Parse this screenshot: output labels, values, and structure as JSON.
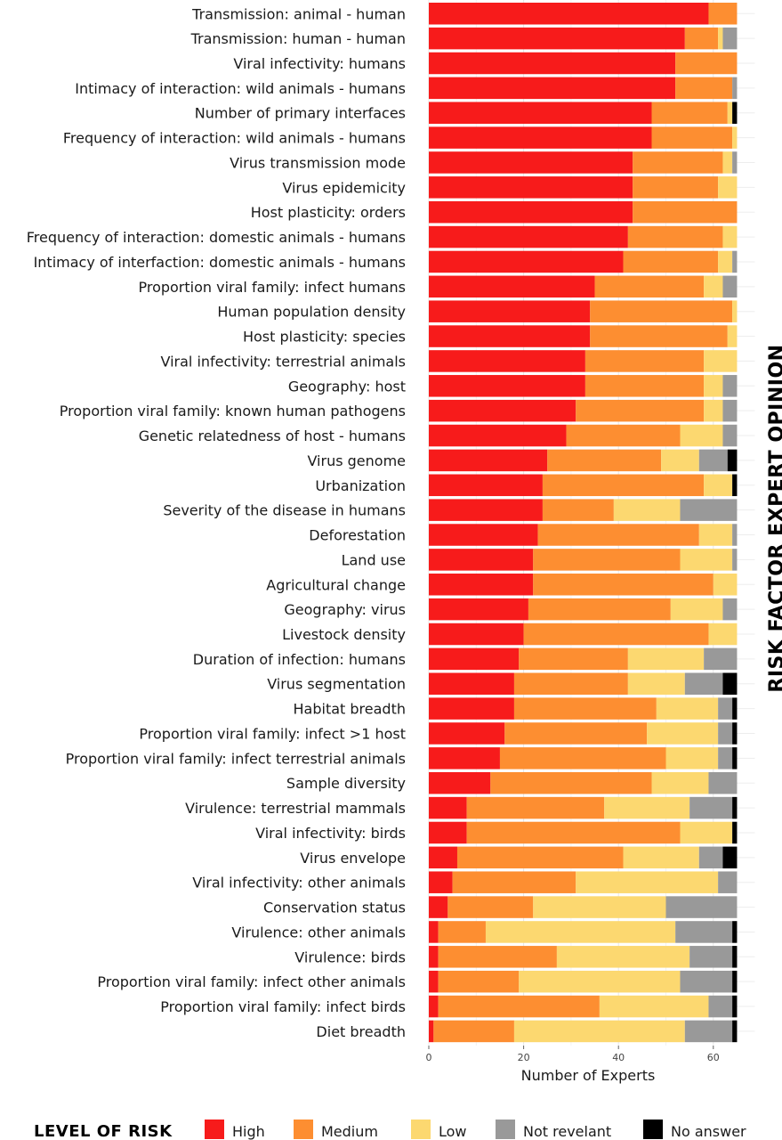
{
  "chart_data": {
    "type": "bar",
    "orientation": "horizontal-stacked",
    "title": "",
    "side_title": "RISK FACTOR EXPERT OPINION",
    "xlabel": "Number of Experts",
    "ylabel": "",
    "xlim": [
      0,
      65
    ],
    "xticks": [
      0,
      20,
      40,
      60
    ],
    "grid": true,
    "legend": {
      "placement": "bottom",
      "title": "LEVEL OF RISK",
      "entries": [
        "High",
        "Medium",
        "Low",
        "Not revelant",
        "No answer"
      ]
    },
    "colors": {
      "High": "#f71b1b",
      "Medium": "#fd8e31",
      "Low": "#fcd870",
      "Not revelant": "#999999",
      "No answer": "#000000"
    },
    "categories": [
      "Transmission: animal - human",
      "Transmission: human - human",
      "Viral infectivity: humans",
      "Intimacy of interaction: wild animals - humans",
      "Number of primary interfaces",
      "Frequency of interaction: wild animals - humans",
      "Virus transmission mode",
      "Virus epidemicity",
      "Host plasticity: orders",
      "Frequency of interaction: domestic animals - humans",
      "Intimacy of interfaction: domestic animals - humans",
      "Proportion viral family: infect humans",
      "Human population density",
      "Host plasticity: species",
      "Viral infectivity: terrestrial animals",
      "Geography: host",
      "Proportion viral family: known human pathogens",
      "Genetic relatedness of host - humans",
      "Virus genome",
      "Urbanization",
      "Severity of the disease in humans",
      "Deforestation",
      "Land use",
      "Agricultural change",
      "Geography: virus",
      "Livestock density",
      "Duration of infection: humans",
      "Virus segmentation",
      "Habitat breadth",
      "Proportion viral family: infect >1 host",
      "Proportion viral family: infect terrestrial animals",
      "Sample diversity",
      "Virulence: terrestrial mammals",
      "Viral infectivity: birds",
      "Virus envelope",
      "Viral infectivity: other animals",
      "Conservation status",
      "Virulence: other animals",
      "Virulence: birds",
      "Proportion viral family: infect other animals",
      "Proportion viral family: infect birds",
      "Diet breadth"
    ],
    "series": [
      {
        "name": "High",
        "values": [
          59,
          54,
          52,
          52,
          47,
          47,
          43,
          43,
          43,
          42,
          41,
          35,
          34,
          34,
          33,
          33,
          31,
          29,
          25,
          24,
          24,
          23,
          22,
          22,
          21,
          20,
          19,
          18,
          18,
          16,
          15,
          13,
          8,
          8,
          6,
          5,
          4,
          2,
          2,
          2,
          2,
          1
        ]
      },
      {
        "name": "Medium",
        "values": [
          6,
          7,
          13,
          12,
          16,
          17,
          19,
          18,
          22,
          20,
          20,
          23,
          30,
          29,
          25,
          25,
          27,
          24,
          24,
          34,
          15,
          34,
          31,
          38,
          30,
          39,
          23,
          24,
          30,
          30,
          35,
          34,
          29,
          45,
          35,
          26,
          18,
          10,
          25,
          17,
          34,
          17
        ]
      },
      {
        "name": "Low",
        "values": [
          0,
          1,
          0,
          0,
          1,
          1,
          2,
          4,
          0,
          3,
          3,
          4,
          1,
          2,
          7,
          4,
          4,
          9,
          8,
          6,
          14,
          7,
          11,
          5,
          11,
          6,
          16,
          12,
          13,
          15,
          11,
          12,
          18,
          11,
          16,
          30,
          28,
          40,
          28,
          34,
          23,
          36
        ]
      },
      {
        "name": "Not revelant",
        "values": [
          0,
          3,
          0,
          1,
          0,
          0,
          1,
          0,
          0,
          0,
          1,
          3,
          0,
          0,
          0,
          3,
          3,
          3,
          6,
          0,
          12,
          1,
          1,
          0,
          3,
          0,
          7,
          8,
          3,
          3,
          3,
          6,
          9,
          0,
          5,
          4,
          15,
          12,
          9,
          11,
          5,
          10
        ]
      },
      {
        "name": "No answer",
        "values": [
          0,
          0,
          0,
          0,
          1,
          0,
          0,
          0,
          0,
          0,
          0,
          0,
          0,
          0,
          0,
          0,
          0,
          0,
          2,
          1,
          0,
          0,
          0,
          0,
          0,
          0,
          0,
          3,
          1,
          1,
          1,
          0,
          1,
          1,
          3,
          0,
          0,
          1,
          1,
          1,
          1,
          1
        ]
      }
    ]
  }
}
